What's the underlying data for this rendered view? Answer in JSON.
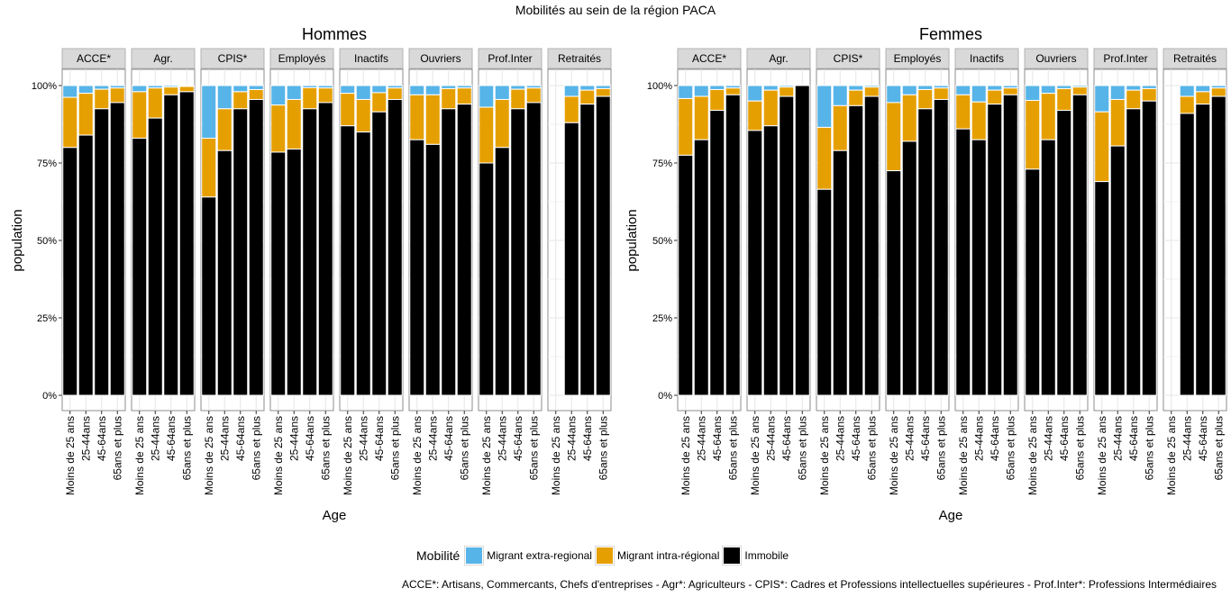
{
  "chart_data": {
    "type": "bar",
    "stacked": true,
    "title": "Mobilités au sein de la région PACA",
    "xlabel": "Age",
    "ylabel": "population",
    "ylim": [
      0,
      1.05
    ],
    "y_ticks": [
      "0%",
      "25%",
      "50%",
      "75%",
      "100%"
    ],
    "categories": [
      "Moins de 25 ans",
      "25-44ans",
      "45-64ans",
      "65ans et plus"
    ],
    "facet_labels": [
      "ACCE*",
      "Agr.",
      "CPIS*",
      "Employés",
      "Inactifs",
      "Ouvriers",
      "Prof.Inter",
      "Retraités"
    ],
    "series_names": [
      "Migrant extra-regional",
      "Migrant intra-régional",
      "Immobile"
    ],
    "colors": {
      "Migrant extra-regional": "#56B4E9",
      "Migrant intra-régional": "#E69F00",
      "Immobile": "#000000"
    },
    "panels": [
      {
        "title": "Hommes",
        "facets": [
          {
            "name": "ACCE*",
            "immobile": [
              0.8,
              0.84,
              0.925,
              0.945
            ],
            "intra": [
              0.162,
              0.135,
              0.063,
              0.047
            ]
          },
          {
            "name": "Agr.",
            "immobile": [
              0.83,
              0.895,
              0.97,
              0.98
            ],
            "intra": [
              0.15,
              0.097,
              0.025,
              0.017
            ]
          },
          {
            "name": "CPIS*",
            "immobile": [
              0.64,
              0.79,
              0.925,
              0.955
            ],
            "intra": [
              0.19,
              0.135,
              0.055,
              0.032
            ]
          },
          {
            "name": "Employés",
            "immobile": [
              0.785,
              0.795,
              0.925,
              0.945
            ],
            "intra": [
              0.152,
              0.16,
              0.068,
              0.047
            ]
          },
          {
            "name": "Inactifs",
            "immobile": [
              0.87,
              0.85,
              0.915,
              0.955
            ],
            "intra": [
              0.105,
              0.105,
              0.062,
              0.037
            ]
          },
          {
            "name": "Ouvriers",
            "immobile": [
              0.825,
              0.81,
              0.925,
              0.94
            ],
            "intra": [
              0.145,
              0.16,
              0.065,
              0.052
            ]
          },
          {
            "name": "Prof.Inter",
            "immobile": [
              0.75,
              0.8,
              0.925,
              0.945
            ],
            "intra": [
              0.18,
              0.155,
              0.063,
              0.047
            ]
          },
          {
            "name": "Retraités",
            "immobile": [
              null,
              0.88,
              0.94,
              0.965
            ],
            "intra": [
              null,
              0.085,
              0.045,
              0.025
            ]
          }
        ]
      },
      {
        "title": "Femmes",
        "facets": [
          {
            "name": "ACCE*",
            "immobile": [
              0.775,
              0.825,
              0.92,
              0.97
            ],
            "intra": [
              0.183,
              0.14,
              0.067,
              0.022
            ]
          },
          {
            "name": "Agr.",
            "immobile": [
              0.855,
              0.87,
              0.965,
              1.0
            ],
            "intra": [
              0.095,
              0.115,
              0.03,
              0.0
            ]
          },
          {
            "name": "CPIS*",
            "immobile": [
              0.665,
              0.79,
              0.935,
              0.965
            ],
            "intra": [
              0.2,
              0.145,
              0.05,
              0.03
            ]
          },
          {
            "name": "Employés",
            "immobile": [
              0.725,
              0.82,
              0.925,
              0.955
            ],
            "intra": [
              0.22,
              0.15,
              0.062,
              0.037
            ]
          },
          {
            "name": "Inactifs",
            "immobile": [
              0.86,
              0.825,
              0.94,
              0.97
            ],
            "intra": [
              0.11,
              0.122,
              0.045,
              0.022
            ]
          },
          {
            "name": "Ouvriers",
            "immobile": [
              0.73,
              0.825,
              0.92,
              0.97
            ],
            "intra": [
              0.222,
              0.15,
              0.07,
              0.025
            ]
          },
          {
            "name": "Prof.Inter",
            "immobile": [
              0.69,
              0.805,
              0.925,
              0.95
            ],
            "intra": [
              0.225,
              0.15,
              0.06,
              0.04
            ]
          },
          {
            "name": "Retraités",
            "immobile": [
              null,
              0.91,
              0.94,
              0.965
            ],
            "intra": [
              null,
              0.055,
              0.04,
              0.027
            ]
          }
        ]
      }
    ],
    "grid": true,
    "legend_position": "bottom"
  },
  "legend": {
    "title": "Mobilité",
    "items": [
      "Migrant extra-regional",
      "Migrant intra-régional",
      "Immobile"
    ]
  },
  "footnote": "ACCE*: Artisans, Commercants, Chefs d'entreprises  -  Agr*: Agriculteurs  -  CPIS*: Cadres et Professions intellectuelles supérieures  -  Prof.Inter*: Professions Intermédiaires"
}
